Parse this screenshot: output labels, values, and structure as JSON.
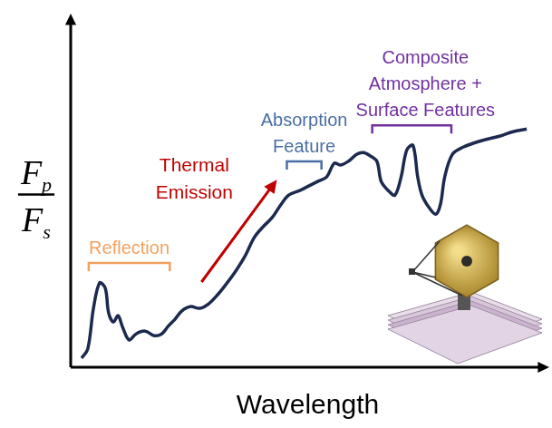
{
  "chart_data": {
    "type": "line",
    "xlabel": "Wavelength",
    "ylabel": {
      "numerator": [
        "F",
        "p"
      ],
      "denominator": [
        "F",
        "s"
      ]
    },
    "color": "#1b2a4e",
    "x": [
      2.3,
      3.6,
      4.8,
      6.1,
      7.3,
      8.0,
      9.0,
      10.0,
      10.9,
      12.3,
      13.8,
      15.7,
      17.6,
      19.2,
      20.5,
      22.0,
      23.4,
      25.3,
      27.2,
      29.1,
      31.0,
      33.0,
      34.9,
      36.8,
      38.7,
      40.6,
      42.5,
      44.4,
      46.0,
      48.3,
      50.2,
      52.1,
      54.0,
      55.6,
      56.9,
      58.8,
      60.3,
      61.7,
      63.2,
      64.6,
      65.5,
      67.0,
      68.4,
      69.7,
      70.9,
      72.2,
      73.2,
      74.1,
      75.5,
      77.0,
      78.0,
      78.9,
      80.5,
      82.8,
      86.6,
      90.4,
      93.3,
      96.2
    ],
    "values": [
      3.0,
      6.0,
      19.4,
      27.8,
      26.0,
      17.9,
      14.9,
      17.0,
      13.4,
      9.0,
      11.0,
      11.9,
      10.4,
      11.0,
      13.4,
      15.8,
      18.5,
      20.0,
      19.4,
      20.9,
      23.9,
      27.8,
      31.9,
      36.7,
      42.7,
      46.3,
      49.3,
      53.7,
      56.7,
      58.2,
      59.7,
      61.2,
      62.7,
      67.2,
      66.6,
      68.1,
      70.1,
      70.7,
      69.6,
      67.8,
      61.2,
      58.2,
      56.7,
      62.7,
      71.6,
      73.1,
      62.7,
      56.7,
      52.8,
      50.4,
      53.7,
      62.7,
      70.1,
      72.5,
      74.6,
      76.1,
      77.6,
      78.5
    ],
    "xlim": [
      0,
      100
    ],
    "ylim": [
      0,
      115
    ],
    "xticks": [],
    "yticks": [],
    "tick_labels": false,
    "grid": false,
    "annotations": [
      {
        "text": [
          "Reflection"
        ],
        "shape": "bracket",
        "x_range": [
          3.8,
          20.9
        ],
        "color": "#f2a15f"
      },
      {
        "text": [
          "Thermal",
          "Emission"
        ],
        "shape": "arrow",
        "x_range": [
          27.6,
          43.5
        ],
        "color": "#c00000"
      },
      {
        "text": [
          "Absorption",
          "Feature"
        ],
        "shape": "bracket",
        "x_range": [
          45.6,
          52.9
        ],
        "color": "#4a6fa5"
      },
      {
        "text": [
          "Composite",
          "Atmosphere +",
          "Surface Features"
        ],
        "shape": "bracket",
        "x_range": [
          63.6,
          80.3
        ],
        "color": "#7030a0"
      }
    ]
  }
}
